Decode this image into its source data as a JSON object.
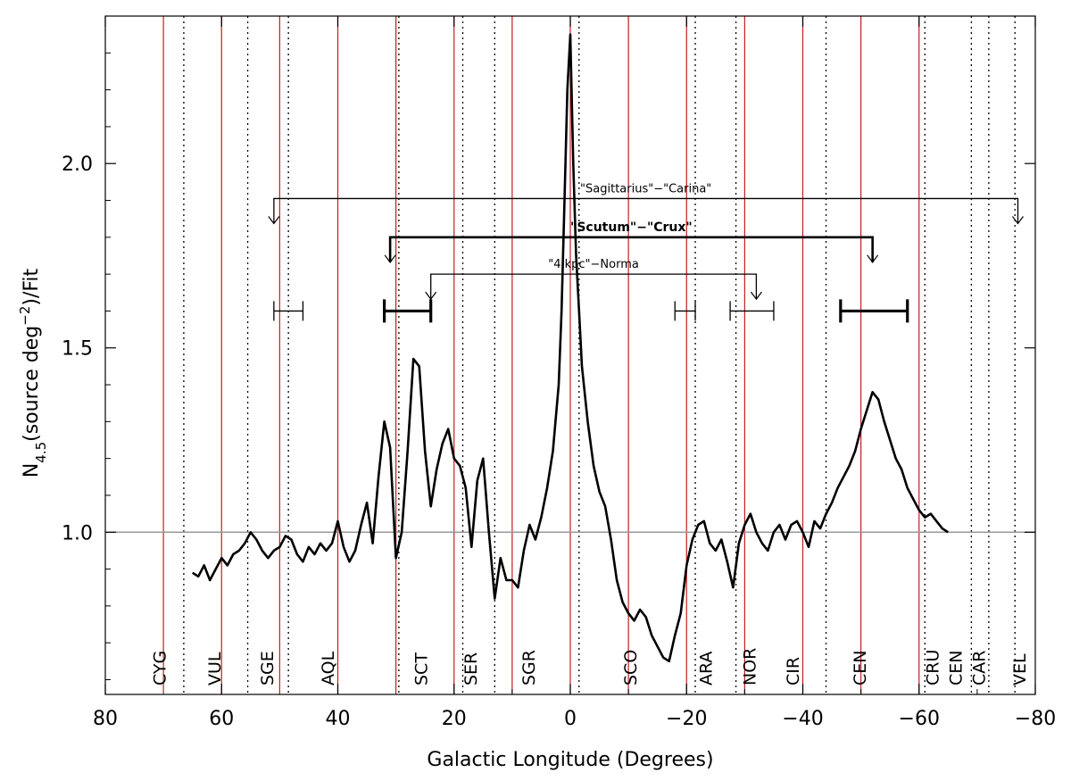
{
  "chart_data": {
    "type": "line",
    "xlabel": "Galactic Longitude (Degrees)",
    "ylabel_main": "N",
    "ylabel_sub": "4.5",
    "ylabel_open": "(source deg",
    "ylabel_sup": "−2",
    "ylabel_close": ")/Fit",
    "xlim": [
      80,
      -80
    ],
    "ylim": [
      0.56,
      2.4
    ],
    "x_ticks": [
      80,
      60,
      40,
      20,
      0,
      -20,
      -40,
      -60,
      -80
    ],
    "x_tick_labels": [
      "80",
      "60",
      "40",
      "20",
      "0",
      "−20",
      "−40",
      "−60",
      "−80"
    ],
    "y_ticks": [
      1.0,
      1.5,
      2.0
    ],
    "y_tick_labels": [
      "1.0",
      "1.5",
      "2.0"
    ],
    "reference_line_y": 1.0,
    "red_lines_x": [
      70,
      60,
      50,
      40,
      30,
      20,
      10,
      0,
      -10,
      -20,
      -30,
      -40,
      -50,
      -60
    ],
    "boundary_lines_x": [
      66.5,
      55.5,
      48.5,
      29.5,
      18.5,
      13,
      -1.5,
      -21.5,
      -28.5,
      -44,
      -61,
      -69,
      -72,
      -76.5
    ],
    "constellations": [
      {
        "label": "CYG",
        "x": 70.5
      },
      {
        "label": "VUL",
        "x": 61
      },
      {
        "label": "SGE",
        "x": 52
      },
      {
        "label": "AQL",
        "x": 41.5
      },
      {
        "label": "SCT",
        "x": 25.5
      },
      {
        "label": "SER",
        "x": 17
      },
      {
        "label": "SGR",
        "x": 7
      },
      {
        "label": "SCO",
        "x": -10.5
      },
      {
        "label": "ARA",
        "x": -23.5
      },
      {
        "label": "NOR",
        "x": -31
      },
      {
        "label": "CIR",
        "x": -38.5
      },
      {
        "label": "CEN",
        "x": -50
      },
      {
        "label": "CRU",
        "x": -62.5
      },
      {
        "label": "CEN",
        "x": -66.5
      },
      {
        "label": "CAR",
        "x": -70.5
      },
      {
        "label": "VEL",
        "x": -77.5
      }
    ],
    "arm_tangents": [
      {
        "label": "\"Sagittarius\"−\"Carina\"",
        "x1": 51,
        "x2": -77,
        "y": 1.905,
        "bold": false
      },
      {
        "label": "\"Scutum\"−\"Crux\"",
        "x1": 31,
        "x2": -52,
        "y": 1.8,
        "bold": true
      },
      {
        "label": "\"4 kpc\"−Norma",
        "x1": 24,
        "x2": -32,
        "y": 1.7,
        "bold": false
      }
    ],
    "error_bars": [
      {
        "x1": 51,
        "x2": 46,
        "y": 1.6,
        "bold": false
      },
      {
        "x1": 32,
        "x2": 24,
        "y": 1.6,
        "bold": true
      },
      {
        "x1": -18,
        "x2": -21.5,
        "y": 1.6,
        "bold": false
      },
      {
        "x1": -27.5,
        "x2": -35,
        "y": 1.6,
        "bold": false
      },
      {
        "x1": -46.5,
        "x2": -58,
        "y": 1.6,
        "bold": true
      }
    ],
    "series": [
      {
        "x": [
          65,
          64,
          63,
          62,
          61,
          60,
          59,
          58,
          57,
          56,
          55,
          54,
          53,
          52,
          51,
          50,
          49,
          48,
          47,
          46,
          45,
          44,
          43,
          42,
          41,
          40,
          39,
          38,
          37,
          36,
          35,
          34,
          33,
          32,
          31,
          30,
          29,
          28,
          27,
          26,
          25,
          24,
          23,
          22,
          21,
          20,
          19,
          18,
          17,
          16,
          15,
          14,
          13,
          12,
          11,
          10,
          9,
          8,
          7,
          6,
          5,
          4,
          3,
          2,
          1.5,
          1,
          0.5,
          0,
          -0.5,
          -1,
          -1.5,
          -2,
          -3,
          -4,
          -5,
          -6,
          -7,
          -8,
          -9,
          -10,
          -11,
          -12,
          -13,
          -14,
          -15,
          -16,
          -17,
          -18,
          -19,
          -20,
          -21,
          -22,
          -23,
          -24,
          -25,
          -26,
          -27,
          -28,
          -29,
          -30,
          -31,
          -32,
          -33,
          -34,
          -35,
          -36,
          -37,
          -38,
          -39,
          -40,
          -41,
          -42,
          -43,
          -44,
          -45,
          -46,
          -47,
          -48,
          -49,
          -50,
          -51,
          -52,
          -53,
          -54,
          -55,
          -56,
          -57,
          -58,
          -59,
          -60,
          -61,
          -62,
          -63,
          -64,
          -65
        ],
        "y": [
          0.89,
          0.88,
          0.91,
          0.87,
          0.9,
          0.93,
          0.91,
          0.94,
          0.95,
          0.97,
          1.0,
          0.98,
          0.95,
          0.93,
          0.95,
          0.96,
          0.99,
          0.98,
          0.94,
          0.92,
          0.96,
          0.94,
          0.97,
          0.95,
          0.97,
          1.03,
          0.96,
          0.92,
          0.95,
          1.02,
          1.08,
          0.97,
          1.15,
          1.3,
          1.23,
          0.93,
          1.0,
          1.22,
          1.47,
          1.45,
          1.22,
          1.07,
          1.17,
          1.24,
          1.28,
          1.2,
          1.18,
          1.12,
          0.96,
          1.14,
          1.2,
          1.0,
          0.82,
          0.93,
          0.87,
          0.87,
          0.85,
          0.95,
          1.02,
          0.98,
          1.04,
          1.12,
          1.22,
          1.4,
          1.6,
          1.9,
          2.2,
          2.35,
          2.0,
          1.75,
          1.6,
          1.45,
          1.3,
          1.18,
          1.11,
          1.07,
          0.98,
          0.87,
          0.81,
          0.78,
          0.76,
          0.79,
          0.77,
          0.72,
          0.69,
          0.66,
          0.65,
          0.72,
          0.78,
          0.91,
          0.98,
          1.02,
          1.03,
          0.97,
          0.95,
          0.98,
          0.92,
          0.85,
          0.97,
          1.02,
          1.05,
          1.0,
          0.97,
          0.95,
          1.0,
          1.02,
          0.98,
          1.02,
          1.03,
          1.0,
          0.96,
          1.03,
          1.01,
          1.05,
          1.08,
          1.12,
          1.15,
          1.18,
          1.22,
          1.28,
          1.33,
          1.38,
          1.36,
          1.3,
          1.25,
          1.2,
          1.17,
          1.12,
          1.09,
          1.06,
          1.04,
          1.05,
          1.03,
          1.01,
          1.0
        ]
      }
    ]
  }
}
